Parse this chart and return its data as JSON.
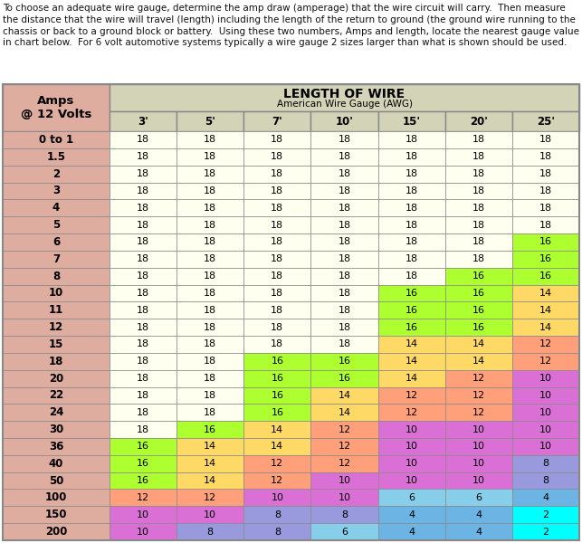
{
  "intro_text": "To choose an adequate wire gauge, determine the amp draw (amperage) that the wire circuit will carry.  Then measure the distance that the wire will travel (length) including the length of the return to ground (the ground wire running to the chassis or back to a ground block or battery.  Using these two numbers, Amps and length, locate the nearest gauge value in chart below.  For 6 volt automotive systems typically a wire gauge 2 sizes larger than what is shown should be used.",
  "header_col": "Amps\n@ 12 Volts",
  "header_row1": "LENGTH OF WIRE",
  "header_row2": "American Wire Gauge (AWG)",
  "col_labels": [
    "3'",
    "5'",
    "7'",
    "10'",
    "15'",
    "20'",
    "25'"
  ],
  "row_labels": [
    "0 to 1",
    "1.5",
    "2",
    "3",
    "4",
    "5",
    "6",
    "7",
    "8",
    "10",
    "11",
    "12",
    "15",
    "18",
    "20",
    "22",
    "24",
    "30",
    "36",
    "40",
    "50",
    "100",
    "150",
    "200"
  ],
  "table_data": [
    [
      18,
      18,
      18,
      18,
      18,
      18,
      18
    ],
    [
      18,
      18,
      18,
      18,
      18,
      18,
      18
    ],
    [
      18,
      18,
      18,
      18,
      18,
      18,
      18
    ],
    [
      18,
      18,
      18,
      18,
      18,
      18,
      18
    ],
    [
      18,
      18,
      18,
      18,
      18,
      18,
      18
    ],
    [
      18,
      18,
      18,
      18,
      18,
      18,
      18
    ],
    [
      18,
      18,
      18,
      18,
      18,
      18,
      16
    ],
    [
      18,
      18,
      18,
      18,
      18,
      18,
      16
    ],
    [
      18,
      18,
      18,
      18,
      18,
      16,
      16
    ],
    [
      18,
      18,
      18,
      18,
      16,
      16,
      14
    ],
    [
      18,
      18,
      18,
      18,
      16,
      16,
      14
    ],
    [
      18,
      18,
      18,
      18,
      16,
      16,
      14
    ],
    [
      18,
      18,
      18,
      18,
      14,
      14,
      12
    ],
    [
      18,
      18,
      16,
      16,
      14,
      14,
      12
    ],
    [
      18,
      18,
      16,
      16,
      14,
      12,
      10
    ],
    [
      18,
      18,
      16,
      14,
      12,
      12,
      10
    ],
    [
      18,
      18,
      16,
      14,
      12,
      12,
      10
    ],
    [
      18,
      16,
      14,
      12,
      10,
      10,
      10
    ],
    [
      16,
      14,
      14,
      12,
      10,
      10,
      10
    ],
    [
      16,
      14,
      12,
      12,
      10,
      10,
      8
    ],
    [
      16,
      14,
      12,
      10,
      10,
      10,
      8
    ],
    [
      12,
      12,
      10,
      10,
      6,
      6,
      4
    ],
    [
      10,
      10,
      8,
      8,
      4,
      4,
      2
    ],
    [
      10,
      8,
      8,
      6,
      4,
      4,
      2
    ]
  ],
  "gauge_colors": {
    "18": "#FFFFF0",
    "16": "#ADFF2F",
    "14": "#FFD966",
    "12": "#FFA07A",
    "10": "#DA70D6",
    "8": "#9999DD",
    "6": "#87CEEB",
    "4": "#6CB4E4",
    "2": "#00FFFF"
  },
  "row_header_color": "#DEAD9F",
  "col_header_color": "#D3D3B8",
  "bg_color": "#ffffff",
  "border_color": "#999999",
  "text_color": "#000000"
}
